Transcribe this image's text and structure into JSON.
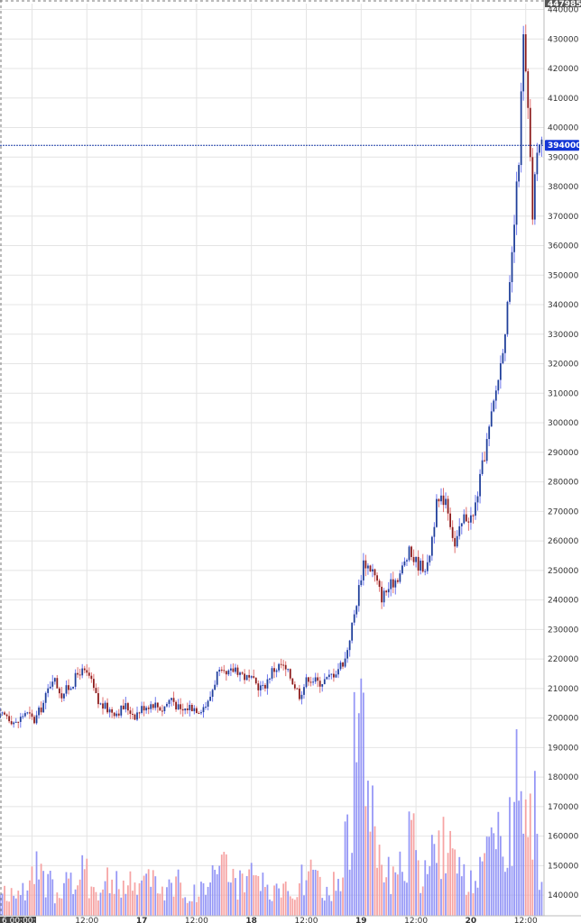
{
  "chart_data": {
    "type": "candlestick",
    "title": "",
    "xlabel": "",
    "ylabel": "",
    "ylim": [
      133000,
      442000
    ],
    "y_ticks": [
      140000,
      150000,
      160000,
      170000,
      180000,
      190000,
      200000,
      210000,
      220000,
      230000,
      240000,
      250000,
      260000,
      270000,
      280000,
      290000,
      300000,
      310000,
      320000,
      330000,
      340000,
      350000,
      360000,
      370000,
      380000,
      390000,
      400000,
      410000,
      420000,
      430000,
      440000
    ],
    "y_tick_labels": [
      "140000",
      "150000",
      "160000",
      "170000",
      "180000",
      "190000",
      "200000",
      "210000",
      "220000",
      "230000",
      "240000",
      "250000",
      "260000",
      "270000",
      "280000",
      "290000",
      "300000",
      "310000",
      "320000",
      "330000",
      "340000",
      "350000",
      "360000",
      "370000",
      "380000",
      "390000",
      "400000",
      "410000",
      "420000",
      "430000",
      "440000"
    ],
    "top_right_label": "447985",
    "current_price": 394000,
    "current_price_label": "394000",
    "x_ticks": [
      {
        "label": "6 00:00:00",
        "t": 0,
        "highlight": true
      },
      {
        "label": "12:00",
        "t": 12
      },
      {
        "label": "17",
        "t": 24,
        "bold": true
      },
      {
        "label": "12:00",
        "t": 36
      },
      {
        "label": "18",
        "t": 48,
        "bold": true
      },
      {
        "label": "12:00",
        "t": 60
      },
      {
        "label": "19",
        "t": 72,
        "bold": true
      },
      {
        "label": "12:00",
        "t": 84
      },
      {
        "label": "20",
        "t": 96,
        "bold": true
      },
      {
        "label": "12:00",
        "t": 108
      }
    ],
    "xlim": [
      -7,
      112
    ],
    "price_series": [
      [
        -7,
        200000
      ],
      [
        -5,
        201000
      ],
      [
        -3,
        198000
      ],
      [
        -1,
        202000
      ],
      [
        1,
        199000
      ],
      [
        3,
        205000
      ],
      [
        5,
        214000
      ],
      [
        7,
        208000
      ],
      [
        9,
        211000
      ],
      [
        11,
        216000
      ],
      [
        13,
        214000
      ],
      [
        15,
        205000
      ],
      [
        17,
        203000
      ],
      [
        19,
        202000
      ],
      [
        21,
        204000
      ],
      [
        23,
        201000
      ],
      [
        25,
        204000
      ],
      [
        27,
        205000
      ],
      [
        29,
        203000
      ],
      [
        31,
        207000
      ],
      [
        33,
        202000
      ],
      [
        35,
        204000
      ],
      [
        37,
        203000
      ],
      [
        39,
        205000
      ],
      [
        41,
        215000
      ],
      [
        43,
        214000
      ],
      [
        45,
        217000
      ],
      [
        47,
        214000
      ],
      [
        49,
        212000
      ],
      [
        51,
        210000
      ],
      [
        53,
        216000
      ],
      [
        55,
        218000
      ],
      [
        57,
        214000
      ],
      [
        59,
        208000
      ],
      [
        61,
        214000
      ],
      [
        63,
        212000
      ],
      [
        65,
        213000
      ],
      [
        67,
        216000
      ],
      [
        69,
        220000
      ],
      [
        71,
        235000
      ],
      [
        73,
        253000
      ],
      [
        75,
        250000
      ],
      [
        77,
        241000
      ],
      [
        79,
        245000
      ],
      [
        81,
        249000
      ],
      [
        83,
        256000
      ],
      [
        85,
        252000
      ],
      [
        87,
        251000
      ],
      [
        89,
        272000
      ],
      [
        91,
        275000
      ],
      [
        93,
        258000
      ],
      [
        95,
        268000
      ],
      [
        97,
        268000
      ],
      [
        99,
        285000
      ],
      [
        101,
        302000
      ],
      [
        103,
        320000
      ],
      [
        105,
        345000
      ],
      [
        107,
        390000
      ],
      [
        108,
        430000
      ],
      [
        109,
        405000
      ],
      [
        110,
        370000
      ],
      [
        111,
        394000
      ]
    ],
    "volume_series": [
      [
        -7,
        141000
      ],
      [
        -5,
        139000
      ],
      [
        -3,
        143000
      ],
      [
        -1,
        140000
      ],
      [
        1,
        148000
      ],
      [
        3,
        144000
      ],
      [
        5,
        142000
      ],
      [
        7,
        146000
      ],
      [
        9,
        143000
      ],
      [
        11,
        147000
      ],
      [
        13,
        145000
      ],
      [
        15,
        141000
      ],
      [
        17,
        146000
      ],
      [
        19,
        142000
      ],
      [
        21,
        144000
      ],
      [
        23,
        142000
      ],
      [
        25,
        147000
      ],
      [
        27,
        143000
      ],
      [
        29,
        142000
      ],
      [
        31,
        146000
      ],
      [
        33,
        141000
      ],
      [
        35,
        140000
      ],
      [
        37,
        142000
      ],
      [
        39,
        145000
      ],
      [
        41,
        156000
      ],
      [
        43,
        147000
      ],
      [
        45,
        144000
      ],
      [
        47,
        142000
      ],
      [
        49,
        148000
      ],
      [
        51,
        141000
      ],
      [
        53,
        140000
      ],
      [
        55,
        142000
      ],
      [
        57,
        143000
      ],
      [
        59,
        145000
      ],
      [
        61,
        147000
      ],
      [
        63,
        142000
      ],
      [
        65,
        140000
      ],
      [
        67,
        146000
      ],
      [
        69,
        158000
      ],
      [
        71,
        195000
      ],
      [
        73,
        182000
      ],
      [
        75,
        165000
      ],
      [
        77,
        150000
      ],
      [
        79,
        144000
      ],
      [
        81,
        148000
      ],
      [
        83,
        160000
      ],
      [
        85,
        145000
      ],
      [
        87,
        148000
      ],
      [
        89,
        164000
      ],
      [
        91,
        153000
      ],
      [
        93,
        148000
      ],
      [
        95,
        144000
      ],
      [
        97,
        142000
      ],
      [
        99,
        150000
      ],
      [
        101,
        160000
      ],
      [
        103,
        152000
      ],
      [
        105,
        168000
      ],
      [
        107,
        200000
      ],
      [
        108,
        182000
      ],
      [
        109,
        175000
      ],
      [
        110,
        165000
      ],
      [
        111,
        148000
      ]
    ],
    "colors": {
      "up": "#1f3f9a",
      "down": "#8b1a1a",
      "up_wick": "#6f78ee",
      "down_wick": "#e07070",
      "vol_up": "#8a8cf5",
      "vol_down": "#f59a9a",
      "grid": "#e4e4e4",
      "price_line": "#1a3aa5",
      "badge": "#1336d6"
    },
    "grid": true
  }
}
